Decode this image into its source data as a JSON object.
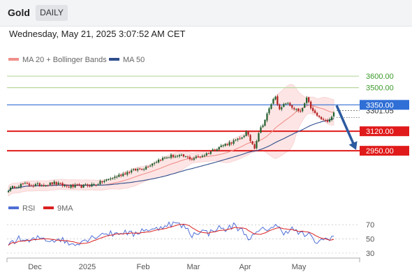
{
  "header": {
    "instrument": "Gold",
    "period": "DAILY"
  },
  "timestamp": "Wednesday, May 21, 2025 3:07:52 AM CET",
  "colors": {
    "ma20": "#f0908b",
    "ma50": "#2f4d8c",
    "bollinger_fill": "#fde5e5",
    "rsi": "#4f6fd6",
    "rsi_ma": "#d92020",
    "resistance": "#b8d8a0",
    "current_line": "#2f6fd6",
    "support": "#e01a1a",
    "arrow": "#2c5aa0",
    "bull_candle": "#1f5e2c",
    "bear_candle": "#b32020"
  },
  "legend": {
    "ma20": "MA 20 + Bollinger Bands",
    "ma50": "MA 50",
    "rsi": "RSI",
    "rsi_ma": "9MA"
  },
  "chart_data": {
    "type": "line",
    "ylim": [
      2550,
      3680
    ],
    "x_ticks": [
      "Dec",
      "2025",
      "Feb",
      "Mar",
      "Apr",
      "May"
    ],
    "levels": [
      {
        "value": 3600,
        "label": "3600.00",
        "kind": "resistance"
      },
      {
        "value": 3500,
        "label": "3500.00",
        "kind": "resistance"
      },
      {
        "value": 3350,
        "label": "3350.00",
        "kind": "current"
      },
      {
        "value": 3120,
        "label": "3120.00",
        "kind": "support"
      },
      {
        "value": 2950,
        "label": "2950.00",
        "kind": "support"
      }
    ],
    "current_price_label": "3301.05",
    "current_price": 3301,
    "close_anchors": [
      [
        0,
        2610
      ],
      [
        3,
        2640
      ],
      [
        7,
        2660
      ],
      [
        12,
        2650
      ],
      [
        18,
        2655
      ],
      [
        22,
        2670
      ],
      [
        28,
        2640
      ],
      [
        35,
        2640
      ],
      [
        42,
        2660
      ],
      [
        50,
        2715
      ],
      [
        58,
        2770
      ],
      [
        65,
        2800
      ],
      [
        72,
        2870
      ],
      [
        78,
        2905
      ],
      [
        84,
        2900
      ],
      [
        88,
        2880
      ],
      [
        94,
        2915
      ],
      [
        101,
        2985
      ],
      [
        106,
        3020
      ],
      [
        111,
        3050
      ],
      [
        114,
        3110
      ],
      [
        116,
        3040
      ],
      [
        118,
        2980
      ],
      [
        120,
        3110
      ],
      [
        123,
        3220
      ],
      [
        126,
        3360
      ],
      [
        128,
        3430
      ],
      [
        130,
        3300
      ],
      [
        133,
        3370
      ],
      [
        136,
        3330
      ],
      [
        140,
        3280
      ],
      [
        143,
        3400
      ],
      [
        146,
        3290
      ],
      [
        149,
        3240
      ],
      [
        152,
        3200
      ],
      [
        155,
        3250
      ],
      [
        156,
        3290
      ]
    ],
    "rsi": {
      "ticks": [
        70,
        50,
        30
      ],
      "ylim": [
        25,
        80
      ],
      "anchors": [
        [
          0,
          44
        ],
        [
          5,
          50
        ],
        [
          10,
          46
        ],
        [
          15,
          52
        ],
        [
          20,
          48
        ],
        [
          25,
          50
        ],
        [
          30,
          42
        ],
        [
          35,
          47
        ],
        [
          40,
          52
        ],
        [
          45,
          58
        ],
        [
          50,
          57
        ],
        [
          55,
          60
        ],
        [
          60,
          56
        ],
        [
          65,
          64
        ],
        [
          70,
          62
        ],
        [
          75,
          70
        ],
        [
          80,
          72
        ],
        [
          85,
          66
        ],
        [
          88,
          55
        ],
        [
          92,
          62
        ],
        [
          96,
          58
        ],
        [
          100,
          66
        ],
        [
          104,
          63
        ],
        [
          108,
          69
        ],
        [
          112,
          62
        ],
        [
          116,
          50
        ],
        [
          120,
          60
        ],
        [
          124,
          65
        ],
        [
          128,
          68
        ],
        [
          132,
          60
        ],
        [
          136,
          64
        ],
        [
          140,
          57
        ],
        [
          144,
          55
        ],
        [
          148,
          45
        ],
        [
          152,
          50
        ],
        [
          156,
          54
        ]
      ]
    }
  }
}
